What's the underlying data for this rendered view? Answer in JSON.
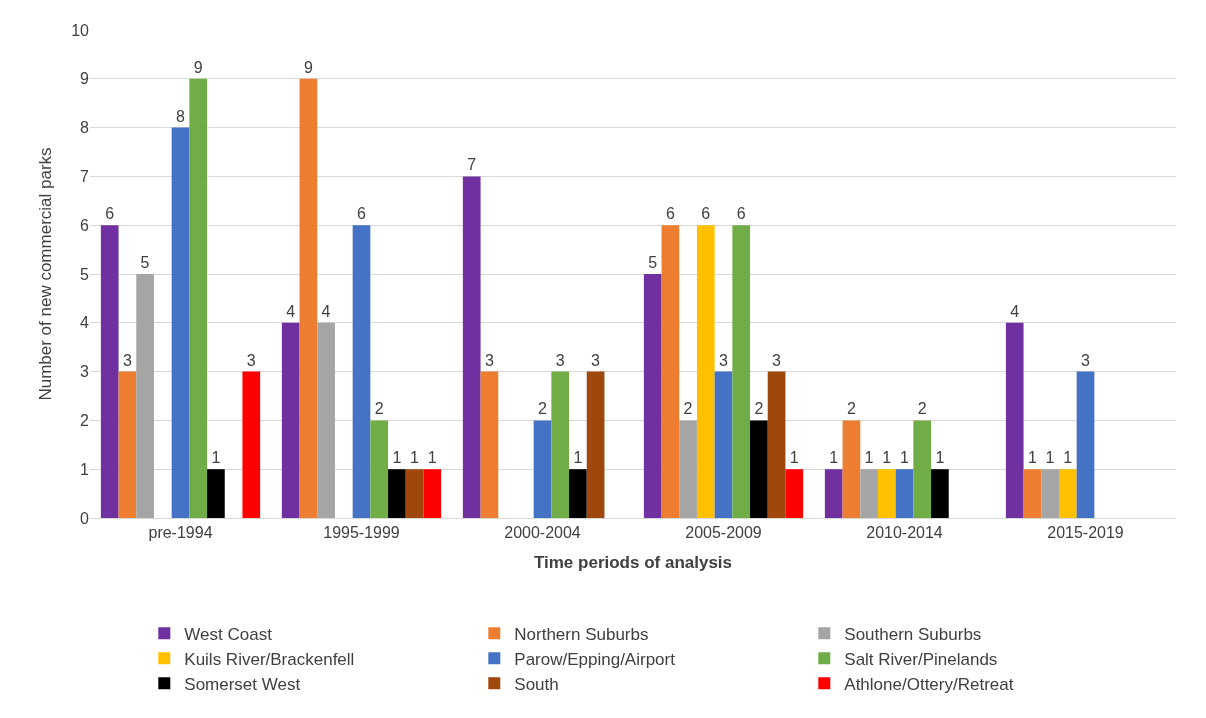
{
  "chart_data": {
    "type": "bar",
    "xlabel": "Time periods of analysis",
    "ylabel": "Number of new commercial parks",
    "categories": [
      "pre-1994",
      "1995-1999",
      "2000-2004",
      "2005-2009",
      "2010-2014",
      "2015-2019"
    ],
    "series": [
      {
        "name": "West Coast",
        "color": "#7030a0",
        "values": [
          6,
          4,
          7,
          5,
          1,
          4
        ]
      },
      {
        "name": "Northern Suburbs",
        "color": "#ed7d31",
        "values": [
          3,
          9,
          3,
          6,
          2,
          1
        ]
      },
      {
        "name": "Southern Suburbs",
        "color": "#a5a5a5",
        "values": [
          5,
          4,
          null,
          2,
          1,
          1
        ]
      },
      {
        "name": "Kuils River/Brackenfell",
        "color": "#ffc000",
        "values": [
          null,
          null,
          null,
          6,
          1,
          1
        ]
      },
      {
        "name": "Parow/Epping/Airport",
        "color": "#4472c4",
        "values": [
          8,
          6,
          2,
          3,
          1,
          3
        ]
      },
      {
        "name": "Salt River/Pinelands",
        "color": "#70ad47",
        "values": [
          9,
          2,
          3,
          6,
          2,
          null
        ]
      },
      {
        "name": "Somerset West",
        "color": "#000000",
        "values": [
          1,
          1,
          1,
          2,
          1,
          null
        ]
      },
      {
        "name": "South",
        "color": "#9e480e",
        "values": [
          null,
          1,
          3,
          3,
          null,
          null
        ]
      },
      {
        "name": "Athlone/Ottery/Retreat",
        "color": "#ff0000",
        "values": [
          3,
          1,
          null,
          1,
          null,
          null
        ]
      }
    ],
    "ylim": [
      0,
      10
    ],
    "yticks": [
      0,
      1,
      2,
      3,
      4,
      5,
      6,
      7,
      8,
      9,
      10
    ],
    "grid": "y",
    "legend": "bottom",
    "data_labels": true
  }
}
